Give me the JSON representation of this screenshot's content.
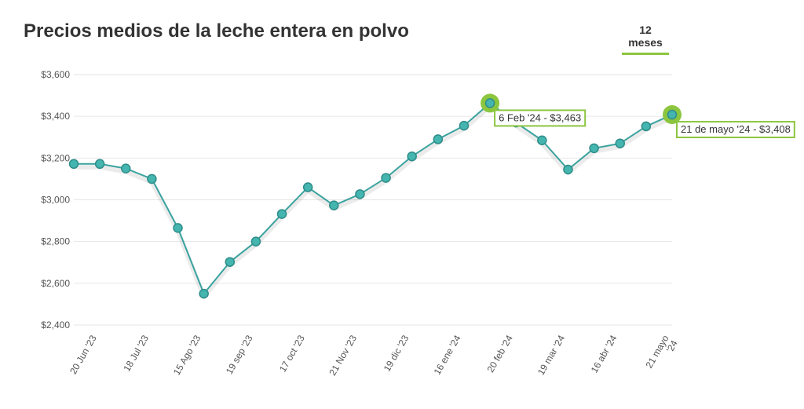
{
  "header": {
    "title": "Precios medios de la leche entera en polvo",
    "period_tab": "12 meses"
  },
  "colors": {
    "line": "#3aa39f",
    "point_fill": "#45b5b0",
    "highlight": "#8cc63f",
    "grid": "#e6e6e6"
  },
  "chart_data": {
    "type": "line",
    "title": "Precios medios de la leche entera en polvo",
    "xlabel": "",
    "ylabel": "",
    "ylim": [
      2400,
      3600
    ],
    "yticks": [
      "$2,400",
      "$2,600",
      "$2,800",
      "$3,000",
      "$3,200",
      "$3,400",
      "$3,600"
    ],
    "ytick_values": [
      2400,
      2600,
      2800,
      3000,
      3200,
      3400,
      3600
    ],
    "grid": true,
    "x_tick_labels": [
      "20 Jun '23",
      "18 Jul '23",
      "15 Ago '23",
      "19 sep '23",
      "17 oct '23",
      "21 Nov '23",
      "19 dic '23",
      "16 ene '24",
      "20 feb '24",
      "19 mar '24",
      "16 abr '24",
      "21 mayo '24"
    ],
    "series": [
      {
        "values": [
          3172,
          3172,
          3150,
          3100,
          2865,
          2550,
          2702,
          2800,
          2932,
          3060,
          2973,
          3027,
          3105,
          3208,
          3290,
          3355,
          3463,
          3370,
          3285,
          3145,
          3247,
          3270,
          3352,
          3408
        ]
      }
    ],
    "annotations": [
      {
        "index": 16,
        "text": "6 Feb '24  -  $3,463"
      },
      {
        "index": 23,
        "text": "21 de mayo '24 - $3,408"
      }
    ]
  }
}
